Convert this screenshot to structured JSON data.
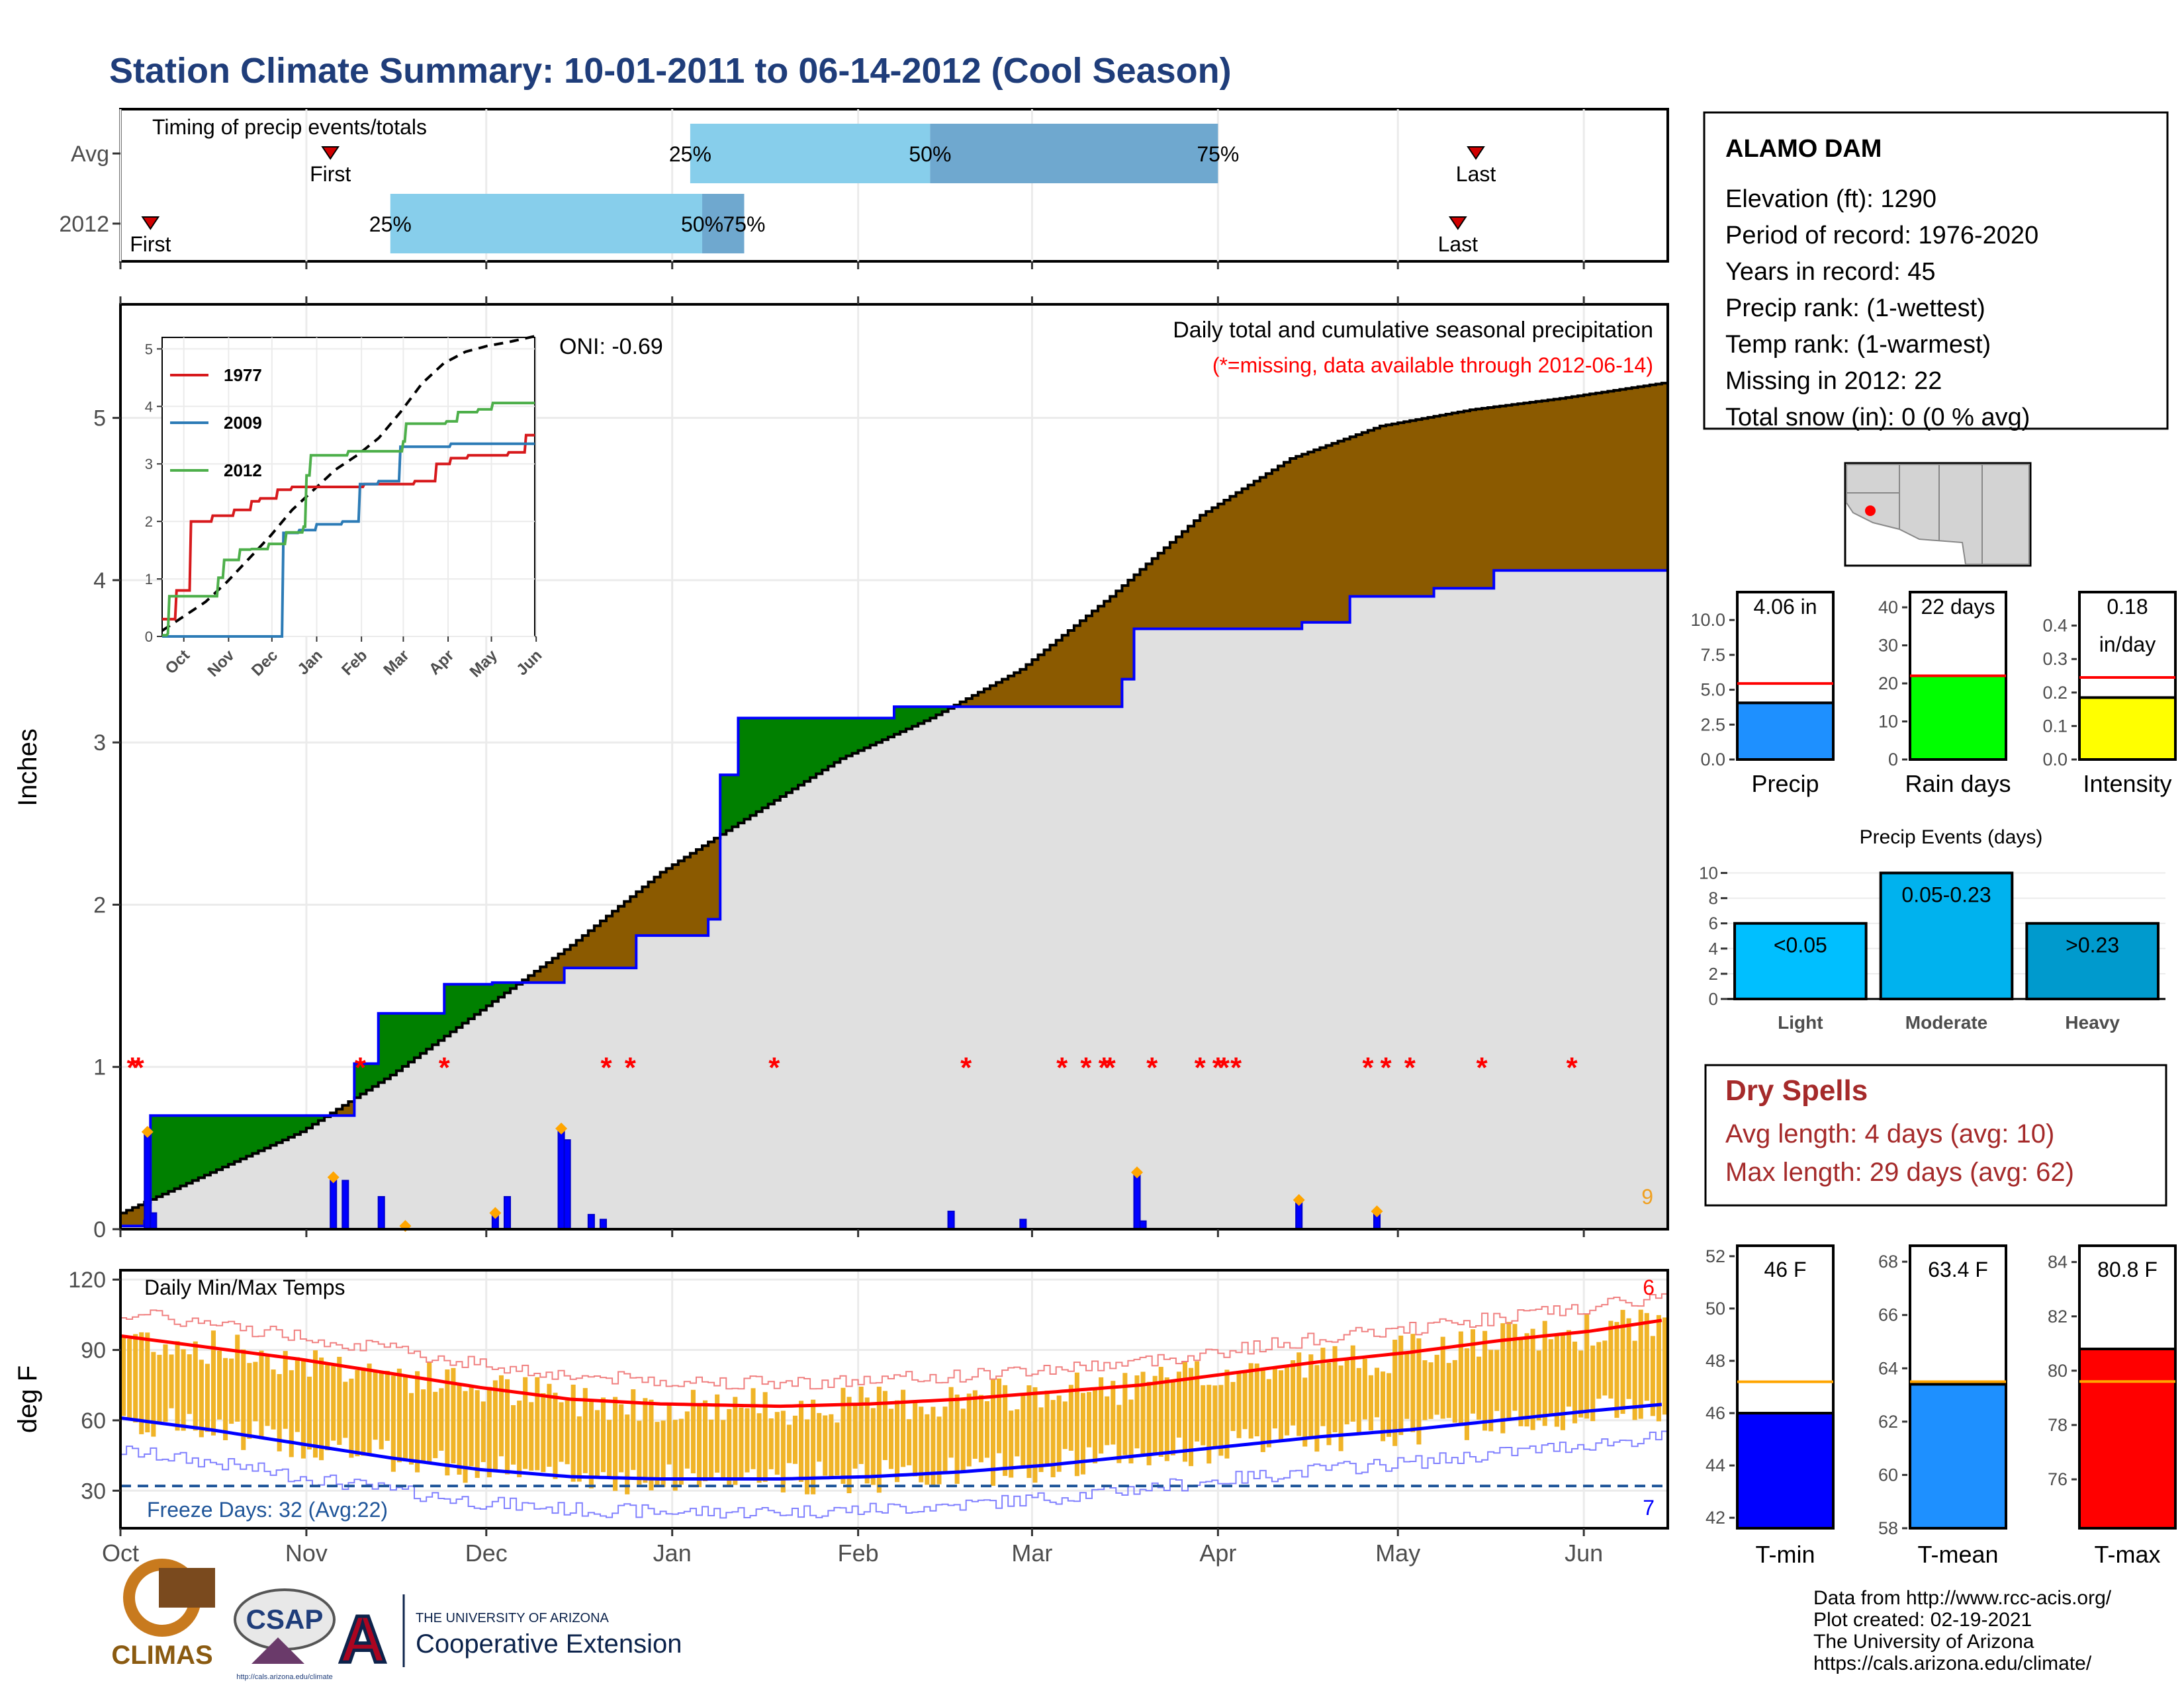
{
  "title": "Station Climate Summary: 10-01-2011 to 06-14-2012 (Cool Season)",
  "timing": {
    "label": "Timing of precip events/totals",
    "rows": [
      {
        "name": "Avg",
        "first_day": 35,
        "last_day": 226,
        "p25": 95,
        "p50": 135,
        "p75": 183
      },
      {
        "name": "2012",
        "first_day": 5,
        "last_day": 223,
        "p25": 45,
        "p50": 97,
        "p75": 104
      }
    ],
    "first_label": "First",
    "last_label": "Last",
    "p25_label": "25%",
    "p50_label": "50%",
    "p75_label": "75%"
  },
  "precip_panel": {
    "ylabel": "Inches",
    "header": "Daily total and cumulative seasonal precipitation",
    "missing_note": "(*=missing, data available through 2012-06-14)",
    "oni": "ONI: -0.69",
    "corner_count": "9",
    "ylim": [
      0,
      5.7
    ],
    "yticks": [
      0,
      1,
      2,
      3,
      4,
      5
    ],
    "season_days": 258,
    "avg_cumulative": {
      "days": [
        0,
        15,
        30,
        45,
        60,
        75,
        90,
        105,
        120,
        135,
        150,
        165,
        180,
        195,
        210,
        225,
        240,
        258
      ],
      "values": [
        0.1,
        0.35,
        0.6,
        0.95,
        1.35,
        1.75,
        2.2,
        2.55,
        2.9,
        3.15,
        3.45,
        3.9,
        4.4,
        4.75,
        4.95,
        5.05,
        5.12,
        5.22
      ]
    },
    "cumulative_2012": {
      "days": [
        0,
        4,
        5,
        35,
        39,
        43,
        54,
        62,
        69,
        74,
        80,
        86,
        98,
        100,
        103,
        128,
        129,
        136,
        137,
        167,
        169,
        197,
        201,
        205,
        219,
        229,
        258
      ],
      "values": [
        0.02,
        0.05,
        0.7,
        0.7,
        1.02,
        1.33,
        1.51,
        1.52,
        1.52,
        1.61,
        1.61,
        1.81,
        1.91,
        2.8,
        3.15,
        3.15,
        3.22,
        3.22,
        3.22,
        3.39,
        3.7,
        3.74,
        3.74,
        3.9,
        3.95,
        4.06,
        4.06
      ]
    },
    "daily_bars": [
      {
        "day": 4,
        "value": 0.6
      },
      {
        "day": 5,
        "value": 0.1
      },
      {
        "day": 35,
        "value": 0.32
      },
      {
        "day": 37,
        "value": 0.3
      },
      {
        "day": 43,
        "value": 0.2
      },
      {
        "day": 47,
        "value": 0.02
      },
      {
        "day": 62,
        "value": 0.1
      },
      {
        "day": 64,
        "value": 0.2
      },
      {
        "day": 73,
        "value": 0.62
      },
      {
        "day": 74,
        "value": 0.55
      },
      {
        "day": 78,
        "value": 0.09
      },
      {
        "day": 80,
        "value": 0.06
      },
      {
        "day": 138,
        "value": 0.11
      },
      {
        "day": 150,
        "value": 0.06
      },
      {
        "day": 169,
        "value": 0.35
      },
      {
        "day": 170,
        "value": 0.05
      },
      {
        "day": 196,
        "value": 0.18
      },
      {
        "day": 209,
        "value": 0.11
      }
    ],
    "extreme_marks": [
      4,
      35,
      47,
      62,
      73,
      169,
      196,
      209
    ],
    "missing_days": [
      2,
      3,
      40,
      54,
      81,
      85,
      109,
      141,
      157,
      161,
      164,
      165,
      172,
      180,
      183,
      184,
      186,
      208,
      211,
      215,
      227,
      242
    ],
    "month_labels": [
      "Oct",
      "Nov",
      "Dec",
      "Jan",
      "Feb",
      "Mar",
      "Apr",
      "May",
      "Jun"
    ],
    "month_start_days": [
      0,
      31,
      61,
      92,
      123,
      152,
      183,
      213,
      244
    ]
  },
  "inset": {
    "yticks": [
      0,
      1,
      2,
      3,
      4,
      5
    ],
    "months": [
      "Oct",
      "Nov",
      "Dec",
      "Jan",
      "Feb",
      "Mar",
      "Apr",
      "May",
      "Jun"
    ],
    "series": [
      {
        "name": "1977",
        "color": "#d7191c",
        "days": [
          0,
          8,
          10,
          20,
          35,
          50,
          62,
          68,
          80,
          90,
          110,
          140,
          158,
          175,
          190,
          200,
          212,
          240,
          252,
          258
        ],
        "values": [
          0.3,
          0.3,
          0.8,
          2.0,
          2.1,
          2.2,
          2.35,
          2.4,
          2.55,
          2.6,
          2.6,
          2.65,
          2.65,
          2.7,
          3.0,
          3.1,
          3.15,
          3.2,
          3.5,
          3.5
        ]
      },
      {
        "name": "2009",
        "color": "#2c7bb6",
        "days": [
          0,
          82,
          84,
          95,
          107,
          125,
          137,
          150,
          165,
          200,
          230,
          258
        ],
        "values": [
          0.0,
          0.0,
          1.8,
          1.85,
          1.95,
          2.0,
          2.65,
          2.7,
          3.3,
          3.35,
          3.35,
          3.35
        ]
      },
      {
        "name": "2012",
        "color": "#4daf4a",
        "days": [
          0,
          4,
          5,
          35,
          39,
          43,
          54,
          62,
          69,
          74,
          80,
          86,
          98,
          100,
          103,
          128,
          129,
          136,
          137,
          167,
          169,
          197,
          201,
          205,
          219,
          229,
          258
        ],
        "values": [
          0.02,
          0.05,
          0.7,
          0.7,
          1.02,
          1.33,
          1.51,
          1.52,
          1.52,
          1.61,
          1.61,
          1.81,
          1.91,
          2.8,
          3.15,
          3.15,
          3.22,
          3.22,
          3.22,
          3.39,
          3.7,
          3.74,
          3.74,
          3.9,
          3.95,
          4.06,
          4.06
        ]
      }
    ]
  },
  "temp_panel": {
    "ylabel": "deg F",
    "label": "Daily Min/Max Temps",
    "freeze_label": "Freeze Days: 32 (Avg:22)",
    "freeze_threshold": 32,
    "ylim": [
      14,
      124
    ],
    "yticks": [
      30,
      60,
      90,
      120
    ],
    "count_high": "6",
    "count_low": "7",
    "avg_max": {
      "days": [
        0,
        15,
        30,
        45,
        60,
        75,
        90,
        110,
        125,
        140,
        155,
        170,
        185,
        200,
        215,
        230,
        245,
        258
      ],
      "values": [
        96,
        91,
        86,
        80,
        74,
        69,
        67,
        66,
        67,
        69,
        72,
        75,
        80,
        85,
        89,
        94,
        98,
        103
      ]
    },
    "avg_min": {
      "days": [
        0,
        15,
        30,
        45,
        60,
        75,
        90,
        110,
        125,
        140,
        155,
        170,
        185,
        200,
        215,
        230,
        245,
        258
      ],
      "values": [
        61,
        56,
        50,
        44,
        39,
        36,
        35,
        35,
        36,
        38,
        41,
        45,
        49,
        53,
        56,
        60,
        64,
        67
      ]
    }
  },
  "station": {
    "name": "ALAMO DAM",
    "lines": [
      "Elevation (ft): 1290",
      "Period of record: 1976-2020",
      "Years in record: 45",
      "Precip rank:  (1-wettest)",
      "Temp rank:  (1-warmest)",
      "Missing in 2012: 22",
      "Total snow (in): 0 (0 % avg)"
    ]
  },
  "summary_bars": [
    {
      "name": "Precip",
      "value": 4.06,
      "value_text": "4.06 in",
      "avg": 5.45,
      "ylim": [
        0,
        12
      ],
      "yticks": [
        0.0,
        2.5,
        5.0,
        7.5,
        10.0
      ],
      "tick_labels": [
        "0.0",
        "2.5",
        "5.0",
        "7.5",
        "10.0"
      ],
      "color": "#1e90ff"
    },
    {
      "name": "Rain days",
      "value": 22,
      "value_text": "22 days",
      "avg": 22,
      "ylim": [
        0,
        44
      ],
      "yticks": [
        0,
        10,
        20,
        30,
        40
      ],
      "tick_labels": [
        "0",
        "10",
        "20",
        "30",
        "40"
      ],
      "color": "#00ff00"
    },
    {
      "name": "Intensity",
      "value": 0.185,
      "value_text": "0.18",
      "value_text2": "in/day",
      "avg": 0.245,
      "ylim": [
        0,
        0.5
      ],
      "yticks": [
        0.0,
        0.1,
        0.2,
        0.3,
        0.4
      ],
      "tick_labels": [
        "0.0",
        "0.1",
        "0.2",
        "0.3",
        "0.4"
      ],
      "color": "#ffff00"
    }
  ],
  "events": {
    "title": "Precip Events (days)",
    "categories": [
      "Light",
      "Moderate",
      "Heavy"
    ],
    "labels": [
      "<0.05",
      "0.05-0.23",
      ">0.23"
    ],
    "values": [
      6,
      10,
      6
    ],
    "ylim": [
      0,
      10.5
    ],
    "yticks": [
      0,
      2,
      4,
      6,
      8,
      10
    ],
    "colors": [
      "#00bfff",
      "#00b2ee",
      "#009acd"
    ]
  },
  "dry_spells": {
    "title": "Dry Spells",
    "avg_line": "Avg length: 4 days (avg: 10)",
    "max_line": "Max length: 29 days (avg: 62)"
  },
  "temp_bars": [
    {
      "name": "T-min",
      "value": 46.0,
      "value_text": "46 F",
      "avg": 47.2,
      "ylim": [
        41.6,
        52.4
      ],
      "yticks": [
        42,
        44,
        46,
        48,
        50,
        52
      ],
      "color": "#0000ff"
    },
    {
      "name": "T-mean",
      "value": 63.4,
      "value_text": "63.4 F",
      "avg": 63.5,
      "ylim": [
        58,
        68.6
      ],
      "yticks": [
        58,
        60,
        62,
        64,
        66,
        68
      ],
      "color": "#1e90ff"
    },
    {
      "name": "T-max",
      "value": 80.8,
      "value_text": "80.8 F",
      "avg": 79.6,
      "ylim": [
        74.2,
        84.6
      ],
      "yticks": [
        76,
        78,
        80,
        82,
        84
      ],
      "color": "#ff0000"
    }
  ],
  "credits": [
    "Data from http://www.rcc-acis.org/",
    "Plot created: 02-19-2021",
    "The University of Arizona",
    "https://cals.arizona.edu/climate/"
  ],
  "logos": {
    "climas": "CLIMAS",
    "csap": "CSAP",
    "csap_url": "http://cals.arizona.edu/climate",
    "ua_small": "THE UNIVERSITY OF ARIZONA",
    "ua_big": "Cooperative Extension"
  },
  "colors": {
    "title": "#1f3d7a",
    "surplus": "#008000",
    "deficit": "#8b5a00",
    "avg_area": "#e0e0e0",
    "line_blue": "#0000ff",
    "missing": "#ff0000",
    "temp_bar": "#f0b428",
    "dry_title": "#a52a2a"
  }
}
